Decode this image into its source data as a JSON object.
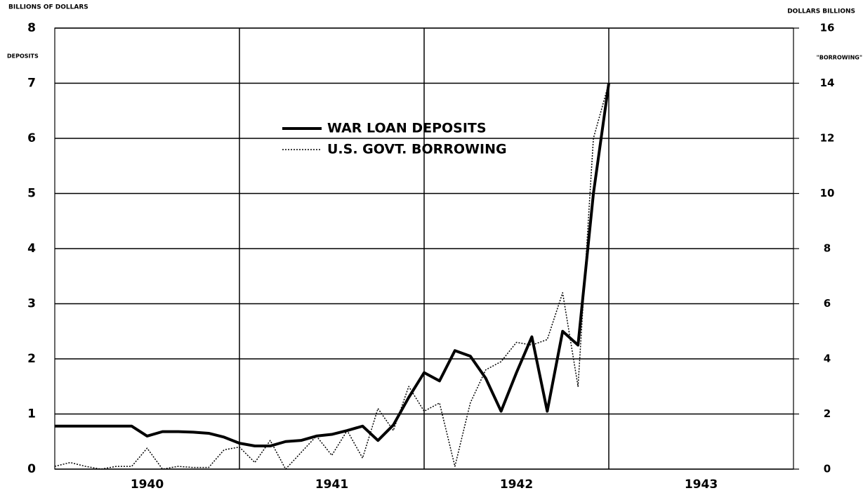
{
  "chart_data": {
    "type": "line",
    "y_label": "BILLIONS OF DOLLARS",
    "y2_label": "DOLLARS BILLIONS",
    "y_series_label": "DEPOSITS",
    "y2_series_label": "\"BORROWING\"",
    "x": [
      0,
      1,
      2,
      3,
      4,
      5,
      6,
      7,
      8,
      9,
      10,
      11,
      12,
      13,
      14,
      15,
      16,
      17,
      18,
      19,
      20,
      21,
      22,
      23,
      24,
      25,
      26,
      27,
      28,
      29,
      30,
      31,
      32,
      33,
      34,
      35,
      36
    ],
    "xlim": [
      0,
      48
    ],
    "xticks": [
      {
        "value": 6,
        "label": "1940"
      },
      {
        "value": 18,
        "label": "1941"
      },
      {
        "value": 30,
        "label": "1942"
      },
      {
        "value": 42,
        "label": "1943"
      }
    ],
    "xgrid": [
      12,
      24,
      36
    ],
    "ylim": [
      0,
      8
    ],
    "yticks": [
      0,
      1,
      2,
      3,
      4,
      5,
      6,
      7,
      8
    ],
    "y2lim": [
      0,
      16
    ],
    "y2ticks": [
      0,
      2,
      4,
      6,
      8,
      10,
      12,
      14,
      16
    ],
    "grid": true,
    "series": [
      {
        "name": "WAR LOAN DEPOSITS",
        "color": "#000000",
        "style": "solid",
        "axis": "y",
        "values": [
          0.78,
          0.78,
          0.78,
          0.78,
          0.78,
          0.78,
          0.6,
          0.68,
          0.68,
          0.67,
          0.65,
          0.58,
          0.47,
          0.42,
          0.42,
          0.5,
          0.52,
          0.6,
          0.63,
          0.7,
          0.78,
          0.52,
          0.8,
          1.3,
          1.75,
          1.6,
          2.15,
          2.05,
          1.65,
          1.05,
          1.75,
          2.4,
          1.05,
          2.5,
          2.25,
          5.0,
          7.0
        ]
      },
      {
        "name": "U.S. GOVT. BORROWING",
        "color": "#000000",
        "style": "dotted",
        "axis": "y2",
        "values": [
          0.1,
          0.24,
          0.1,
          0,
          0.1,
          0.1,
          0.76,
          0,
          0.1,
          0.06,
          0.06,
          0.7,
          0.8,
          0.24,
          1.04,
          0,
          0.6,
          1.2,
          0.5,
          1.4,
          0.4,
          2.2,
          1.4,
          3.0,
          2.1,
          2.4,
          0.1,
          2.4,
          3.6,
          3.9,
          4.6,
          4.5,
          4.7,
          6.4,
          3.0,
          12.0,
          14.0
        ]
      }
    ]
  }
}
